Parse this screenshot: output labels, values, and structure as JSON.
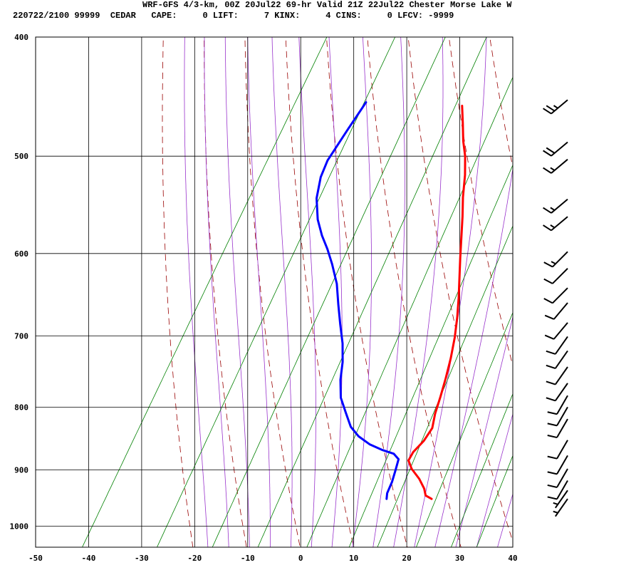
{
  "header": {
    "line1": "WRF-GFS 4/3-km, 00Z 20Jul22 69-hr Valid 21Z 22Jul22 Chester Morse Lake W",
    "line2": "220722/2100 99999  CEDAR   CAPE:     0 LIFT:     7 KINX:     4 CINS:     0 LFCV: -9999"
  },
  "chart_data": {
    "type": "line",
    "subtype": "skew-t log-p sounding",
    "x_ticks": [
      "-50",
      "-40",
      "-30",
      "-20",
      "-10",
      "0",
      "10",
      "20",
      "30",
      "40"
    ],
    "y_ticks": [
      "400",
      "500",
      "600",
      "700",
      "800",
      "900",
      "1000"
    ],
    "xlim": [
      -50,
      40
    ],
    "ylim": [
      1040,
      400
    ],
    "grid": true,
    "series": [
      {
        "role": "temperature",
        "color": "#ff0000",
        "points": [
          [
            -17,
            455
          ],
          [
            -15,
            470
          ],
          [
            -13,
            486
          ],
          [
            -11,
            500
          ],
          [
            -9,
            518
          ],
          [
            -7,
            540
          ],
          [
            -5,
            560
          ],
          [
            -3,
            582
          ],
          [
            -1,
            605
          ],
          [
            1,
            628
          ],
          [
            3,
            652
          ],
          [
            4.8,
            676
          ],
          [
            6.5,
            702
          ],
          [
            8,
            730
          ],
          [
            9.2,
            758
          ],
          [
            10.2,
            785
          ],
          [
            11,
            810
          ],
          [
            12,
            832
          ],
          [
            11.8,
            852
          ],
          [
            11,
            870
          ],
          [
            11,
            884
          ],
          [
            12.5,
            898
          ],
          [
            15,
            915
          ],
          [
            17,
            932
          ],
          [
            18,
            944
          ],
          [
            19.5,
            950
          ]
        ]
      },
      {
        "role": "dewpoint",
        "color": "#0000ff",
        "points": [
          [
            -35.5,
            452
          ],
          [
            -36,
            475
          ],
          [
            -36.5,
            504
          ],
          [
            -36,
            520
          ],
          [
            -34.5,
            541
          ],
          [
            -32,
            563
          ],
          [
            -29.5,
            580
          ],
          [
            -27,
            595
          ],
          [
            -24.5,
            612
          ],
          [
            -21.5,
            635
          ],
          [
            -19,
            660
          ],
          [
            -16.5,
            685
          ],
          [
            -14,
            710
          ],
          [
            -12,
            735
          ],
          [
            -10.5,
            760
          ],
          [
            -8.5,
            786
          ],
          [
            -6,
            808
          ],
          [
            -3.5,
            830
          ],
          [
            -1,
            845
          ],
          [
            2,
            858
          ],
          [
            5,
            867
          ],
          [
            7.5,
            873
          ],
          [
            9,
            882
          ],
          [
            9.6,
            900
          ],
          [
            10.2,
            920
          ],
          [
            10.5,
            940
          ],
          [
            11,
            950
          ]
        ]
      }
    ],
    "wind_barbs": [
      {
        "pressure": 450,
        "direction": 230,
        "speed": 25
      },
      {
        "pressure": 487,
        "direction": 230,
        "speed": 20
      },
      {
        "pressure": 503,
        "direction": 230,
        "speed": 15
      },
      {
        "pressure": 542,
        "direction": 230,
        "speed": 15
      },
      {
        "pressure": 560,
        "direction": 230,
        "speed": 15
      },
      {
        "pressure": 598,
        "direction": 225,
        "speed": 15
      },
      {
        "pressure": 617,
        "direction": 225,
        "speed": 10
      },
      {
        "pressure": 640,
        "direction": 225,
        "speed": 10
      },
      {
        "pressure": 658,
        "direction": 220,
        "speed": 10
      },
      {
        "pressure": 683,
        "direction": 220,
        "speed": 10
      },
      {
        "pressure": 701,
        "direction": 215,
        "speed": 10
      },
      {
        "pressure": 720,
        "direction": 215,
        "speed": 10
      },
      {
        "pressure": 742,
        "direction": 215,
        "speed": 10
      },
      {
        "pressure": 765,
        "direction": 215,
        "speed": 10
      },
      {
        "pressure": 783,
        "direction": 210,
        "speed": 10
      },
      {
        "pressure": 800,
        "direction": 210,
        "speed": 10
      },
      {
        "pressure": 818,
        "direction": 210,
        "speed": 10
      },
      {
        "pressure": 851,
        "direction": 210,
        "speed": 10
      },
      {
        "pressure": 876,
        "direction": 210,
        "speed": 10
      },
      {
        "pressure": 898,
        "direction": 210,
        "speed": 10
      },
      {
        "pressure": 918,
        "direction": 210,
        "speed": 10
      },
      {
        "pressure": 935,
        "direction": 215,
        "speed": 5
      },
      {
        "pressure": 950,
        "direction": 215,
        "speed": 5
      }
    ],
    "colors": {
      "isotherm_grid": "#000000",
      "dry_adiabat": "#990000",
      "moist_adiabat": "#9933cc",
      "mixing_ratio": "#008000"
    }
  }
}
